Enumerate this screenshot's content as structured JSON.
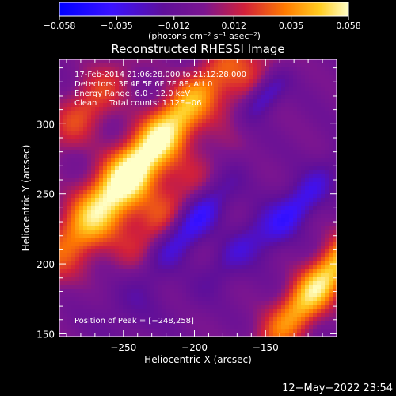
{
  "chart_data": {
    "type": "heatmap",
    "title": "Reconstructed RHESSI Image",
    "xlabel": "Heliocentric X (arcsec)",
    "ylabel": "Heliocentric Y (arcsec)",
    "xlim": [
      -295,
      -100
    ],
    "ylim": [
      148,
      346
    ],
    "x_ticks": [
      -250,
      -200,
      -150
    ],
    "y_ticks": [
      150,
      200,
      250,
      300
    ],
    "colorbar": {
      "range": [
        -0.058,
        0.058
      ],
      "tick_values": [
        -0.058,
        -0.035,
        -0.012,
        0.012,
        0.035,
        0.058
      ],
      "tick_labels": [
        "−0.058",
        "−0.035",
        "−0.012",
        "0.012",
        "0.035",
        "0.058"
      ],
      "unit_label": "(photons cm⁻² s⁻¹ asec⁻²)"
    },
    "annotations": [
      "17-Feb-2014 21:06:28.000 to 21:12:28.000",
      "Detectors: 3F 4F 5F 6F 7F 8F, Att 0",
      "Energy Range: 6.0 - 12.0 keV",
      "Clean     Total counts: 1.12E+06"
    ],
    "peak_label": "Position of Peak = [−248,258]",
    "peak": [
      -248,
      258
    ],
    "features": [
      {
        "kind": "bright ridge",
        "x_range": [
          -290,
          -170
        ],
        "y_range": [
          200,
          346
        ],
        "peak_value": 0.058
      },
      {
        "kind": "bright ridge",
        "x_range": [
          -130,
          -100
        ],
        "y_range": [
          150,
          230
        ],
        "peak_value": 0.05
      },
      {
        "kind": "negative trough",
        "center": [
          -203,
          228
        ],
        "value": -0.045
      },
      {
        "kind": "negative trough",
        "center": [
          -128,
          240
        ],
        "value": -0.03
      }
    ]
  },
  "footer": {
    "timestamp": "12−May−2022 23:54"
  },
  "colors": {
    "background": "#000000",
    "text": "#ffffff"
  }
}
